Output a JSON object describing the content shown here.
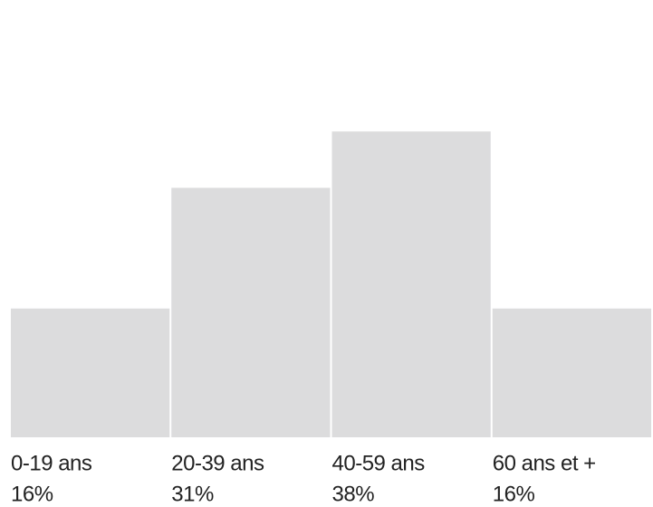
{
  "chart_data": {
    "type": "bar",
    "categories": [
      "0-19 ans",
      "20-39 ans",
      "40-59 ans",
      "60 ans et +"
    ],
    "values": [
      16,
      31,
      38,
      16
    ],
    "value_labels": [
      "16%",
      "31%",
      "38%",
      "16%"
    ],
    "color": "#dcdcdd",
    "ylim": [
      0,
      54
    ]
  }
}
